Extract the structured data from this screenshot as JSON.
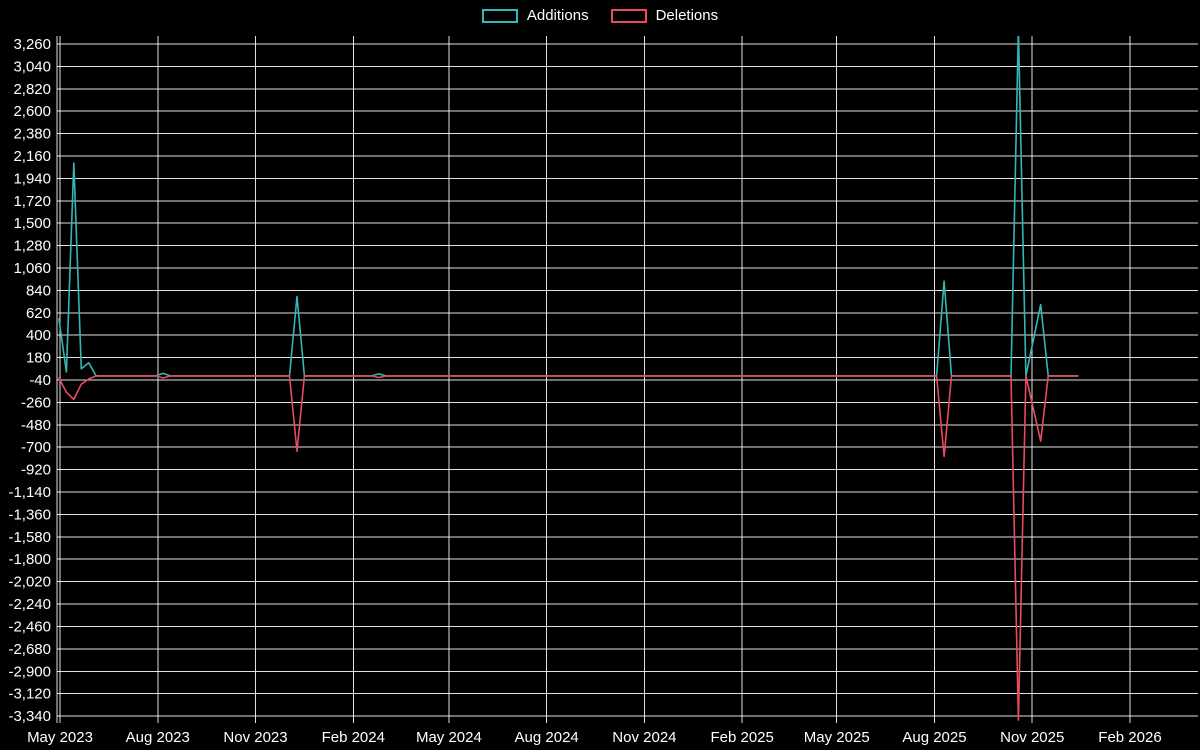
{
  "chart_data": {
    "type": "line",
    "title": "",
    "background": "#000000",
    "grid": {
      "show": true,
      "color": "#ffffff"
    },
    "legend_position": "top-center",
    "series": [
      {
        "name": "Additions",
        "color": "#31b8b6"
      },
      {
        "name": "Deletions",
        "color": "#e94a60"
      }
    ],
    "y_axis": {
      "range": [
        -3408,
        3338
      ],
      "ticks": [
        3260,
        3040,
        2820,
        2600,
        2380,
        2160,
        1940,
        1720,
        1500,
        1280,
        1060,
        840,
        620,
        400,
        180,
        -40,
        -260,
        -480,
        -700,
        -920,
        -1140,
        -1360,
        -1580,
        -1800,
        -2020,
        -2240,
        -2460,
        -2680,
        -2900,
        -3120,
        -3340
      ]
    },
    "x_axis": {
      "ticks": [
        {
          "label": "May 2023",
          "date": "2023-05-01"
        },
        {
          "label": "Aug 2023",
          "date": "2023-08-01"
        },
        {
          "label": "Nov 2023",
          "date": "2023-11-01"
        },
        {
          "label": "Feb 2024",
          "date": "2024-02-01"
        },
        {
          "label": "May 2024",
          "date": "2024-05-01"
        },
        {
          "label": "Aug 2024",
          "date": "2024-08-01"
        },
        {
          "label": "Nov 2024",
          "date": "2024-11-01"
        },
        {
          "label": "Feb 2025",
          "date": "2025-02-01"
        },
        {
          "label": "May 2025",
          "date": "2025-05-01"
        },
        {
          "label": "Aug 2025",
          "date": "2025-08-01"
        },
        {
          "label": "Nov 2025",
          "date": "2025-11-01"
        },
        {
          "label": "Feb 2026",
          "date": "2026-02-01"
        }
      ]
    },
    "points": [
      {
        "date": "2023-04-30",
        "additions": 560,
        "deletions": -20
      },
      {
        "date": "2023-05-07",
        "additions": 40,
        "deletions": -160
      },
      {
        "date": "2023-05-14",
        "additions": 2090,
        "deletions": -230
      },
      {
        "date": "2023-05-21",
        "additions": 70,
        "deletions": -80
      },
      {
        "date": "2023-05-28",
        "additions": 130,
        "deletions": -30
      },
      {
        "date": "2023-06-04",
        "additions": 0,
        "deletions": 0
      },
      {
        "date": "2023-07-30",
        "additions": 0,
        "deletions": 0
      },
      {
        "date": "2023-08-06",
        "additions": 25,
        "deletions": -20
      },
      {
        "date": "2023-08-13",
        "additions": 0,
        "deletions": 0
      },
      {
        "date": "2023-12-03",
        "additions": 0,
        "deletions": 0
      },
      {
        "date": "2023-12-10",
        "additions": 780,
        "deletions": -740
      },
      {
        "date": "2023-12-17",
        "additions": 0,
        "deletions": 0
      },
      {
        "date": "2024-02-18",
        "additions": 0,
        "deletions": 0
      },
      {
        "date": "2024-02-25",
        "additions": 20,
        "deletions": -15
      },
      {
        "date": "2024-03-03",
        "additions": 0,
        "deletions": 0
      },
      {
        "date": "2025-08-03",
        "additions": 0,
        "deletions": 0
      },
      {
        "date": "2025-08-10",
        "additions": 930,
        "deletions": -790
      },
      {
        "date": "2025-08-17",
        "additions": 0,
        "deletions": 0
      },
      {
        "date": "2025-10-12",
        "additions": 0,
        "deletions": 0
      },
      {
        "date": "2025-10-19",
        "additions": 3400,
        "deletions": -3380
      },
      {
        "date": "2025-10-26",
        "additions": 0,
        "deletions": 0
      },
      {
        "date": "2025-11-09",
        "additions": 700,
        "deletions": -640
      },
      {
        "date": "2025-11-16",
        "additions": 0,
        "deletions": 0
      },
      {
        "date": "2025-12-14",
        "additions": 0,
        "deletions": 0
      }
    ]
  }
}
